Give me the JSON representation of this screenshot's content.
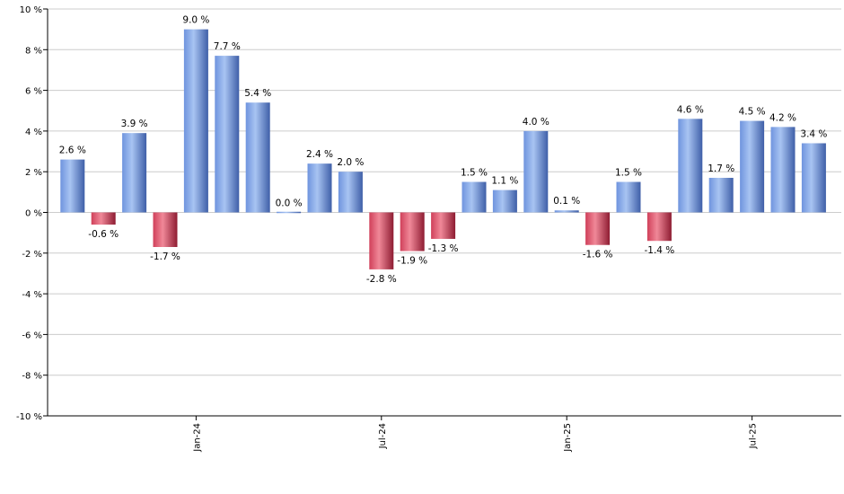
{
  "chart_data": {
    "type": "bar",
    "y_unit_suffix": " %",
    "ylim": [
      -10,
      10
    ],
    "y_ticks": [
      "10 %",
      "8 %",
      "6 %",
      "4 %",
      "2 %",
      "0 %",
      "-2 %",
      "-4 %",
      "-6 %",
      "-8 %",
      "-10 %"
    ],
    "grid": true,
    "legend": "none",
    "x_tick_labels": [
      {
        "label": "Jan-24",
        "index": 4
      },
      {
        "label": "Jul-24",
        "index": 10
      },
      {
        "label": "Jan-25",
        "index": 16
      },
      {
        "label": "Jul-25",
        "index": 22
      }
    ],
    "series": [
      {
        "values": [
          2.6,
          -0.6,
          3.9,
          -1.7,
          9.0,
          7.7,
          5.4,
          0.0,
          2.4,
          2.0,
          -2.8,
          -1.9,
          -1.3,
          1.5,
          1.1,
          4.0,
          0.1,
          -1.6,
          1.5,
          -1.4,
          4.6,
          1.7,
          4.5,
          4.2,
          3.4
        ],
        "labels": [
          "2.6 %",
          "-0.6 %",
          "3.9 %",
          "-1.7 %",
          "9.0 %",
          "7.7 %",
          "5.4 %",
          "0.0 %",
          "2.4 %",
          "2.0 %",
          "-2.8 %",
          "-1.9 %",
          "-1.3 %",
          "1.5 %",
          "1.1 %",
          "4.0 %",
          "0.1 %",
          "-1.6 %",
          "1.5 %",
          "-1.4 %",
          "4.6 %",
          "1.7 %",
          "4.5 %",
          "4.2 %",
          "3.4 %"
        ]
      }
    ],
    "colors": {
      "positive_light": "#a8c4f2",
      "positive_mid": "#6f94de",
      "positive_dark": "#3f5fa8",
      "negative_light": "#f08898",
      "negative_mid": "#d0405a",
      "negative_dark": "#8e1c32"
    }
  }
}
